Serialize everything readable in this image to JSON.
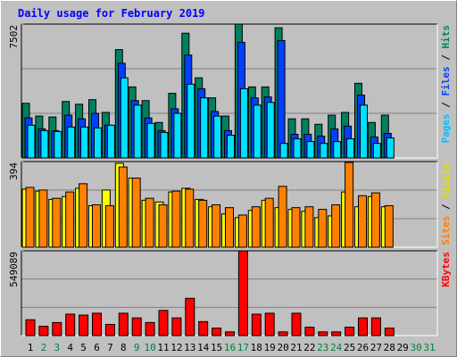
{
  "chart_data": {
    "type": "bar",
    "title": "Daily usage for February 2019",
    "legend_separator": " / ",
    "categories": [
      "1",
      "2",
      "3",
      "4",
      "5",
      "6",
      "7",
      "8",
      "9",
      "10",
      "11",
      "12",
      "13",
      "14",
      "15",
      "16",
      "17",
      "18",
      "19",
      "20",
      "21",
      "22",
      "23",
      "24",
      "25",
      "26",
      "27",
      "28",
      "29",
      "30",
      "31"
    ],
    "category_colors": [
      "#000000",
      "#008040",
      "#008040",
      "#000000",
      "#000000",
      "#000000",
      "#000000",
      "#000000",
      "#008040",
      "#008040",
      "#000000",
      "#000000",
      "#000000",
      "#000000",
      "#000000",
      "#008040",
      "#008040",
      "#000000",
      "#000000",
      "#000000",
      "#000000",
      "#000000",
      "#008040",
      "#008040",
      "#000000",
      "#000000",
      "#000000",
      "#000000",
      "#000000",
      "#008040",
      "#008040"
    ],
    "panels": [
      {
        "ylim": [
          0,
          7502
        ],
        "yticks": [
          7502
        ],
        "series": [
          {
            "name": "Hits",
            "color": "#008060",
            "text_color": "#008060",
            "values": [
              3062,
              2348,
              2297,
              3164,
              3011,
              3266,
              2552,
              6073,
              3981,
              3215,
              1990,
              3623,
              6992,
              4491,
              3368,
              2348,
              7502,
              3981,
              3981,
              7298,
              2194,
              2194,
              1888,
              2399,
              2552,
              4185,
              1990,
              2399,
              null,
              null,
              null
            ]
          },
          {
            "name": "Files",
            "color": "#0040ff",
            "text_color": "#0040ff",
            "values": [
              2245,
              1633,
              1531,
              2398,
              2194,
              2500,
              1837,
              5307,
              3215,
              2245,
              1531,
              2756,
              5767,
              3878,
              2603,
              1531,
              6481,
              3368,
              3419,
              6583,
              1327,
              1327,
              1225,
              1633,
              1786,
              3521,
              1174,
              1378,
              null,
              null,
              null
            ]
          },
          {
            "name": "Pages",
            "color": "#00e0ff",
            "text_color": "#00c0ff",
            "values": [
              1837,
              1531,
              1480,
              1735,
              1735,
              1684,
              1837,
              4491,
              2960,
              1939,
              1429,
              2500,
              4133,
              3368,
              2347,
              1276,
              3878,
              2960,
              3113,
              816,
              1072,
              919,
              816,
              919,
              1072,
              2960,
              816,
              1123,
              null,
              null,
              null
            ]
          }
        ]
      },
      {
        "ylim": [
          0,
          394
        ],
        "yticks": [
          394
        ],
        "series": [
          {
            "name": "Visits",
            "color": "#ffff00",
            "text_color": "#e0e000",
            "values": [
              267,
              258,
              220,
              233,
              271,
              191,
              263,
              386,
              318,
              216,
              208,
              254,
              271,
              220,
              186,
              153,
              136,
              169,
              216,
              182,
              174,
              165,
              136,
              144,
              254,
              186,
              233,
              186,
              null,
              null,
              null
            ]
          },
          {
            "name": "Sites",
            "color": "#ff8000",
            "text_color": "#ff8000",
            "values": [
              275,
              263,
              225,
              254,
              292,
              195,
              191,
              369,
              318,
              225,
              195,
              258,
              267,
              216,
              195,
              182,
              148,
              186,
              225,
              280,
              182,
              186,
              174,
              195,
              390,
              237,
              250,
              191,
              null,
              null,
              null
            ]
          }
        ]
      },
      {
        "ylim": [
          0,
          549089
        ],
        "yticks": [
          549089
        ],
        "series": [
          {
            "name": "KBytes",
            "color": "#ff0000",
            "text_color": "#ff0000",
            "values": [
              102578,
              60340,
              84476,
              138782,
              132748,
              144816,
              72408,
              144816,
              114646,
              84476,
              162918,
              114646,
              241360,
              90510,
              48272,
              24136,
              549089,
              138782,
              144816,
              24136,
              144816,
              54306,
              24136,
              24136,
              54306,
              114646,
              114646,
              48272,
              null,
              null,
              null
            ]
          }
        ]
      }
    ]
  }
}
